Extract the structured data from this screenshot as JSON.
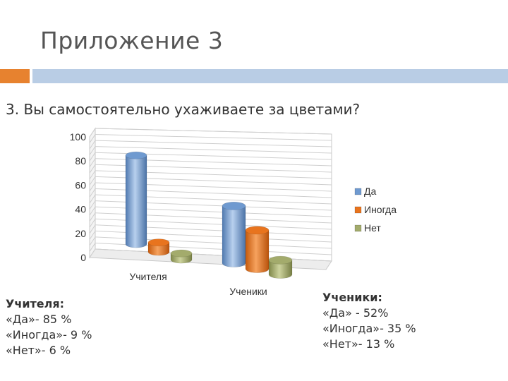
{
  "slide": {
    "title": "Приложение 3",
    "question": "3. Вы самостоятельно ухаживаете за цветами?"
  },
  "chart_data": {
    "type": "bar",
    "style": "3d-cylinder",
    "categories": [
      "Учителя",
      "Ученики"
    ],
    "series": [
      {
        "name": "Да",
        "values": [
          85,
          52
        ],
        "color": "#6f9ad0"
      },
      {
        "name": "Иногда",
        "values": [
          9,
          35
        ],
        "color": "#e8741e"
      },
      {
        "name": "Нет",
        "values": [
          6,
          13
        ],
        "color": "#a3ab6c"
      }
    ],
    "ylim": [
      0,
      100
    ],
    "yticks": [
      "0",
      "20",
      "40",
      "60",
      "80",
      "100"
    ],
    "grid": true,
    "legend": "right"
  },
  "summaries": {
    "teachers": {
      "head": "Учителя:",
      "lines": [
        "«Да»- 85 %",
        "«Иногда»- 9 %",
        "«Нет»- 6 %"
      ]
    },
    "students": {
      "head": "Ученики:",
      "lines": [
        "«Да» - 52%",
        "«Иногда»- 35 %",
        "«Нет»- 13 %"
      ]
    }
  }
}
